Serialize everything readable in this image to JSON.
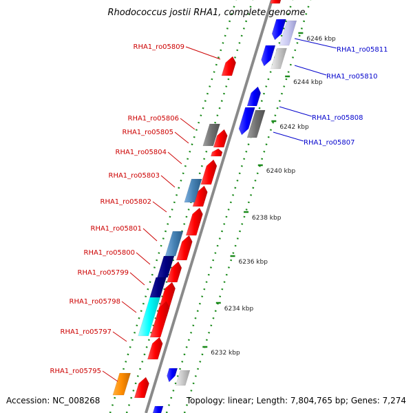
{
  "title": "Rhodococcus jostii RHA1, complete genome",
  "footer": {
    "accession": "Accession: NC_008268",
    "topology": "Topology: linear; Length: 7,804,765 bp; Genes: 7,274"
  },
  "colors": {
    "backbone": "#8a8a8a",
    "tick": "#1a8a1a",
    "forward": "#ff0000",
    "reverse": "#0000ff",
    "left_label": "#cc0000",
    "right_label": "#0000cc"
  },
  "ticks": [
    {
      "label": "6232 kbp"
    },
    {
      "label": "6234 kbp"
    },
    {
      "label": "6236 kbp"
    },
    {
      "label": "6238 kbp"
    },
    {
      "label": "6240 kbp"
    },
    {
      "label": "6242 kbp"
    },
    {
      "label": "6244 kbp"
    },
    {
      "label": "6246 kbp"
    }
  ],
  "left_genes": [
    {
      "name": "RHA1_ro05809"
    },
    {
      "name": "RHA1_ro05806"
    },
    {
      "name": "RHA1_ro05805"
    },
    {
      "name": "RHA1_ro05804"
    },
    {
      "name": "RHA1_ro05803"
    },
    {
      "name": "RHA1_ro05802"
    },
    {
      "name": "RHA1_ro05801"
    },
    {
      "name": "RHA1_ro05800"
    },
    {
      "name": "RHA1_ro05799"
    },
    {
      "name": "RHA1_ro05798"
    },
    {
      "name": "RHA1_ro05797"
    },
    {
      "name": "RHA1_ro05795"
    }
  ],
  "right_genes": [
    {
      "name": "RHA1_ro05811"
    },
    {
      "name": "RHA1_ro05810"
    },
    {
      "name": "RHA1_ro05808"
    },
    {
      "name": "RHA1_ro05807"
    }
  ]
}
